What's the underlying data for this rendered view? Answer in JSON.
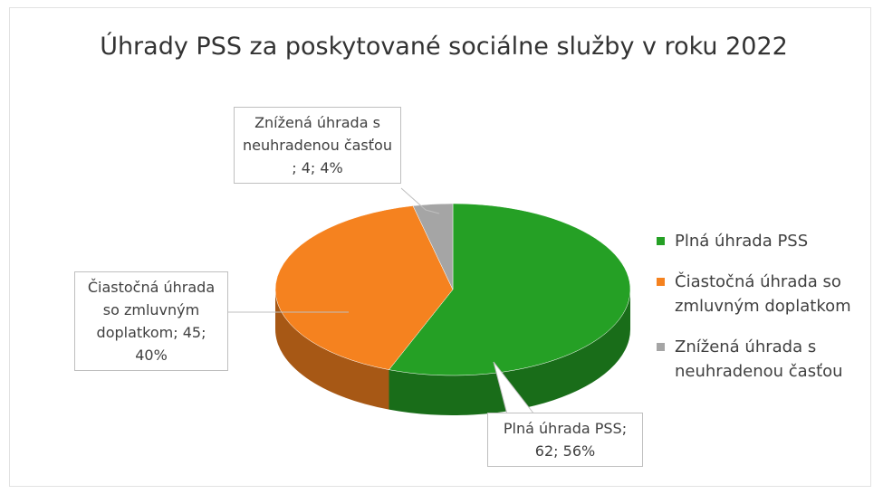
{
  "chart_data": {
    "type": "pie",
    "title": "Úhrady PSS za poskytované sociálne služby v roku 2022",
    "categories": [
      "Plná úhrada PSS",
      "Čiastočná úhrada so zmluvným doplatkom",
      "Znížená úhrada s neuhradenou časťou"
    ],
    "values": [
      62,
      45,
      4
    ],
    "value_labels": [
      "Plná úhrada PSS; 62; 56%",
      "Čiastočná úhrada so zmluvným doplatkom; 45; 40%",
      "Znížená úhrada s neuhradenou časťou ; 4; 4%"
    ],
    "colors": [
      "#25a025",
      "#f5821f",
      "#a5a5a5"
    ],
    "legend": "right",
    "three_d": true
  }
}
